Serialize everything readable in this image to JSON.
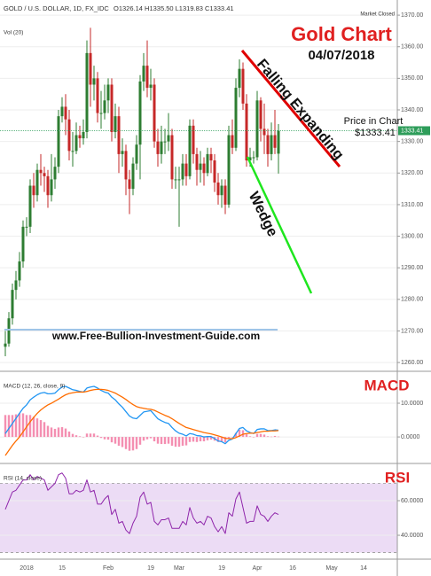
{
  "chart_data": [
    {
      "type": "candlestick",
      "title": "GOLD / U.S. DOLLAR, 1D, FX_IDC",
      "header_ohlc": "O1326.14 H1335.50 L1319.83 C1333.41",
      "volume_label": "Vol (20)",
      "status": "Market Closed",
      "annotations": {
        "title": "Gold Chart",
        "date": "04/07/2018",
        "pattern_upper": "Falling Expanding",
        "pattern_lower": "Wedge",
        "price_caption": "Price in Chart",
        "price_value": "$1333.41",
        "website": "www.Free-Bullion-Investment-Guide.com"
      },
      "categories": [
        null,
        null,
        null,
        null,
        null,
        null,
        "2018",
        null,
        null,
        null,
        null,
        null,
        null,
        null,
        null,
        null,
        "15",
        null,
        null,
        null,
        null,
        null,
        null,
        null,
        null,
        null,
        null,
        null,
        null,
        "Feb",
        null,
        null,
        null,
        null,
        null,
        null,
        null,
        null,
        null,
        null,
        null,
        "19",
        null,
        null,
        null,
        null,
        null,
        null,
        null,
        "Mar",
        null,
        null,
        null,
        null,
        null,
        null,
        null,
        null,
        null,
        null,
        null,
        "19",
        null,
        null,
        null,
        null,
        null,
        null,
        null,
        null,
        null,
        "Apr",
        null,
        null,
        null,
        null,
        null,
        null,
        null,
        null,
        null,
        "16",
        null,
        null,
        null,
        null,
        null,
        null,
        null,
        null,
        null,
        null,
        "May",
        null,
        null,
        null,
        null,
        null,
        null,
        null,
        null,
        "14"
      ],
      "open": [
        1265,
        1266,
        1274,
        1283,
        1286,
        1292,
        1303,
        1303,
        1316,
        1313,
        1321,
        1320,
        1319,
        1313,
        1318,
        1322,
        1338,
        1341,
        1337,
        1327,
        1327,
        1332,
        1331,
        1333,
        1358,
        1348,
        1350,
        1339,
        1339,
        1343,
        1348,
        1333,
        1338,
        1326,
        1327,
        1318,
        1315,
        1323,
        1329,
        1349,
        1354,
        1347,
        1348,
        1330,
        1326,
        1330,
        1330,
        1332,
        1318,
        1318,
        1318,
        1323,
        1319,
        1335,
        1326,
        1321,
        1323,
        1320,
        1326,
        1324,
        1317,
        1313,
        1316,
        1310,
        1332,
        1328,
        1347,
        1353,
        1342,
        1324,
        1325,
        1325,
        1343,
        1334,
        1332,
        1326,
        1332,
        1326.14,
        null,
        null,
        null,
        null,
        null,
        null,
        null,
        null,
        null,
        null,
        null,
        null,
        null,
        null,
        null,
        null,
        null,
        null,
        null,
        null,
        null,
        null,
        null,
        null
      ],
      "high": [
        1270,
        1276,
        1285,
        1289,
        1295,
        1305,
        1306,
        1318,
        1320,
        1323,
        1326,
        1322,
        1321,
        1326,
        1325,
        1340,
        1344,
        1345,
        1340,
        1333,
        1336,
        1335,
        1337,
        1362,
        1366,
        1354,
        1352,
        1346,
        1348,
        1350,
        1350,
        1342,
        1341,
        1331,
        1329,
        1321,
        1325,
        1332,
        1351,
        1358,
        1362,
        1353,
        1350,
        1334,
        1335,
        1334,
        1339,
        1334,
        1322,
        1322,
        1326,
        1326,
        1337,
        1337,
        1328,
        1327,
        1325,
        1328,
        1328,
        1326,
        1320,
        1318,
        1318,
        1335,
        1337,
        1350,
        1356,
        1355,
        1345,
        1328,
        1327,
        1346,
        1344,
        1342,
        1334,
        1336,
        1340,
        1335.5,
        null,
        null,
        null,
        null,
        null,
        null,
        null,
        null,
        null,
        null,
        null,
        null,
        null,
        null,
        null,
        null,
        null,
        null,
        null,
        null,
        null,
        null,
        null,
        null
      ],
      "low": [
        1262,
        1265,
        1272,
        1280,
        1284,
        1290,
        1300,
        1301,
        1309,
        1311,
        1316,
        1314,
        1309,
        1311,
        1315,
        1320,
        1336,
        1332,
        1324,
        1322,
        1326,
        1328,
        1329,
        1331,
        1341,
        1343,
        1336,
        1334,
        1337,
        1339,
        1330,
        1331,
        1320,
        1322,
        1313,
        1307,
        1313,
        1321,
        1318,
        1346,
        1344,
        1343,
        1328,
        1322,
        1323,
        1326,
        1327,
        1315,
        1315,
        1303,
        1316,
        1316,
        1318,
        1323,
        1316,
        1317,
        1316,
        1319,
        1320,
        1314,
        1310,
        1309,
        1307,
        1309,
        1326,
        1327,
        1344,
        1340,
        1322,
        1322,
        1323,
        1324,
        1330,
        1326,
        1322,
        1324,
        1326,
        1319.83,
        null,
        null,
        null,
        null,
        null,
        null,
        null,
        null,
        null,
        null,
        null,
        null,
        null,
        null,
        null,
        null,
        null,
        null,
        null,
        null,
        null,
        null,
        null,
        null
      ],
      "close": [
        1266,
        1274,
        1283,
        1286,
        1292,
        1303,
        1303,
        1316,
        1313,
        1321,
        1320,
        1319,
        1313,
        1318,
        1322,
        1338,
        1341,
        1337,
        1327,
        1327,
        1332,
        1331,
        1333,
        1358,
        1348,
        1350,
        1339,
        1339,
        1343,
        1348,
        1333,
        1338,
        1326,
        1327,
        1318,
        1315,
        1323,
        1329,
        1349,
        1354,
        1347,
        1348,
        1330,
        1326,
        1330,
        1330,
        1332,
        1318,
        1318,
        1318,
        1323,
        1319,
        1335,
        1326,
        1321,
        1323,
        1320,
        1326,
        1324,
        1317,
        1313,
        1316,
        1310,
        1332,
        1328,
        1347,
        1353,
        1342,
        1324,
        1325,
        1325,
        1343,
        1334,
        1332,
        1326,
        1332,
        1328,
        1333.41,
        null,
        null,
        null,
        null,
        null,
        null,
        null,
        null,
        null,
        null,
        null,
        null,
        null,
        null,
        null,
        null,
        null,
        null,
        null,
        null,
        null,
        null,
        null,
        null
      ],
      "up_color": "#2e7d32",
      "down_color": "#c62828",
      "last_price": 1333.41,
      "last_price_color": "#2e9d5a",
      "ylim": [
        1257.5,
        1374.8
      ],
      "yticks": [
        {
          "value": 1260,
          "label": "1260.00"
        },
        {
          "value": 1270,
          "label": "1270.00"
        },
        {
          "value": 1280,
          "label": "1280.00"
        },
        {
          "value": 1290,
          "label": "1290.00"
        },
        {
          "value": 1300,
          "label": "1300.00"
        },
        {
          "value": 1310,
          "label": "1310.00"
        },
        {
          "value": 1320,
          "label": "1320.00"
        },
        {
          "value": 1330,
          "label": "1330.00"
        },
        {
          "value": 1340,
          "label": "1340.00"
        },
        {
          "value": 1350,
          "label": "1350.00"
        },
        {
          "value": 1360,
          "label": "1360.00"
        },
        {
          "value": 1370,
          "label": "1370.00"
        }
      ],
      "grid": true
    },
    {
      "type": "macd",
      "label": "MACD (12, 26, close, 9)",
      "tag": "MACD",
      "series": [
        {
          "kind": "histogram",
          "color": "#f48fb1",
          "values": [
            6.5,
            6.5,
            6.5,
            6.7,
            7,
            7,
            6.5,
            6.5,
            6,
            5.5,
            5,
            4.4,
            3.3,
            2.8,
            2.4,
            2.8,
            2.9,
            2.5,
            1.6,
            0.9,
            0.5,
            0.2,
            0,
            1,
            1,
            1,
            0.4,
            -0.3,
            -0.7,
            -0.8,
            -1.6,
            -2,
            -2.6,
            -3,
            -3.6,
            -4.1,
            -4,
            -3.6,
            -2.3,
            -1.1,
            -0.7,
            -0.4,
            -1.3,
            -2,
            -2.1,
            -2.1,
            -2,
            -2.6,
            -2.9,
            -2.9,
            -2.6,
            -2.5,
            -1.5,
            -1.4,
            -1.5,
            -1.3,
            -1.3,
            -1,
            -0.8,
            -1.1,
            -1.5,
            -1.4,
            -1.6,
            -0.5,
            -0.1,
            1.2,
            2.2,
            2,
            0.8,
            0.2,
            -0.1,
            0.9,
            0.9,
            0.7,
            0.2,
            0.1,
            0.3,
            0.1,
            null,
            null,
            null,
            null,
            null,
            null,
            null,
            null,
            null,
            null,
            null,
            null,
            null,
            null,
            null,
            null,
            null,
            null,
            null,
            null,
            null,
            null,
            null,
            null
          ]
        },
        {
          "kind": "line",
          "color": "#2196f3",
          "values": [
            1,
            2.5,
            4,
            5.5,
            7,
            8.5,
            9.5,
            11,
            11.8,
            12.5,
            13,
            13.2,
            12.8,
            12.8,
            13,
            14,
            14.8,
            15,
            14.5,
            14,
            13.8,
            13.5,
            13.3,
            14.5,
            14.8,
            15,
            14.5,
            13.8,
            13.3,
            13,
            11.8,
            11,
            9.8,
            8.8,
            7.5,
            6.2,
            5.6,
            5.4,
            6.4,
            7.4,
            7.6,
            7.8,
            6.6,
            5.4,
            4.8,
            4.3,
            4,
            2.8,
            1.8,
            1.1,
            0.8,
            0.3,
            1,
            0.8,
            0.4,
            0.3,
            0,
            0.1,
            0.1,
            -0.5,
            -1.2,
            -1.4,
            -2,
            -1,
            -0.6,
            1,
            2.5,
            2.8,
            1.8,
            1.3,
            1,
            2.2,
            2.4,
            2.4,
            1.9,
            1.9,
            2.1,
            2.0,
            null,
            null,
            null,
            null,
            null,
            null,
            null,
            null,
            null,
            null,
            null,
            null,
            null,
            null,
            null,
            null,
            null,
            null,
            null,
            null,
            null,
            null,
            null,
            null
          ]
        },
        {
          "kind": "line",
          "color": "#ff6d00",
          "values": [
            -5.5,
            -4,
            -2.5,
            -1.2,
            0,
            1.5,
            3,
            4.5,
            5.8,
            7,
            8,
            8.8,
            9.5,
            10,
            10.6,
            11.2,
            11.9,
            12.5,
            12.9,
            13.1,
            13.3,
            13.3,
            13.3,
            13.5,
            13.8,
            14,
            14.1,
            14.1,
            14,
            13.8,
            13.4,
            13,
            12.4,
            11.8,
            11.1,
            10.3,
            9.6,
            9,
            8.7,
            8.5,
            8.3,
            8.2,
            7.9,
            7.4,
            6.9,
            6.4,
            6,
            5.4,
            4.7,
            4,
            3.4,
            2.8,
            2.5,
            2.2,
            1.9,
            1.6,
            1.3,
            1.1,
            0.9,
            0.6,
            0.3,
            0,
            -0.4,
            -0.5,
            -0.5,
            -0.2,
            0.3,
            0.8,
            1,
            1.1,
            1.1,
            1.3,
            1.5,
            1.7,
            1.7,
            1.8,
            1.8,
            1.9,
            null,
            null,
            null,
            null,
            null,
            null,
            null,
            null,
            null,
            null,
            null,
            null,
            null,
            null,
            null,
            null,
            null,
            null,
            null,
            null,
            null,
            null,
            null,
            null
          ]
        }
      ],
      "ylim": [
        -7.6,
        19.2
      ],
      "yticks": [
        {
          "value": 0,
          "label": "0.0000"
        },
        {
          "value": 10,
          "label": "10.0000"
        }
      ],
      "grid": true
    },
    {
      "type": "rsi",
      "label": "RSI (14, close)",
      "tag": "RSI",
      "color": "#8e24aa",
      "band": [
        30,
        70
      ],
      "band_color": "#ecdcf5",
      "values": [
        55,
        60,
        65,
        66,
        69,
        72,
        72,
        75,
        72,
        74,
        73,
        72,
        66,
        68,
        70,
        75,
        76,
        73,
        64,
        64,
        66,
        65,
        66,
        72,
        65,
        66,
        58,
        58,
        61,
        63,
        52,
        55,
        47,
        48,
        43,
        41,
        47,
        51,
        62,
        65,
        58,
        59,
        48,
        46,
        49,
        49,
        50,
        44,
        44,
        44,
        48,
        46,
        56,
        50,
        47,
        48,
        46,
        51,
        50,
        45,
        42,
        45,
        41,
        53,
        51,
        61,
        65,
        56,
        47,
        48,
        48,
        57,
        52,
        51,
        48,
        51,
        53,
        52,
        null,
        null,
        null,
        null,
        null,
        null,
        null,
        null,
        null,
        null,
        null,
        null,
        null,
        null,
        null,
        null,
        null,
        null,
        null,
        null,
        null,
        null,
        null,
        null
      ],
      "ylim": [
        26.7,
        81
      ],
      "yticks": [
        {
          "value": 40,
          "label": "40.0000"
        },
        {
          "value": 60,
          "label": "60.0000"
        }
      ],
      "grid": true
    }
  ]
}
